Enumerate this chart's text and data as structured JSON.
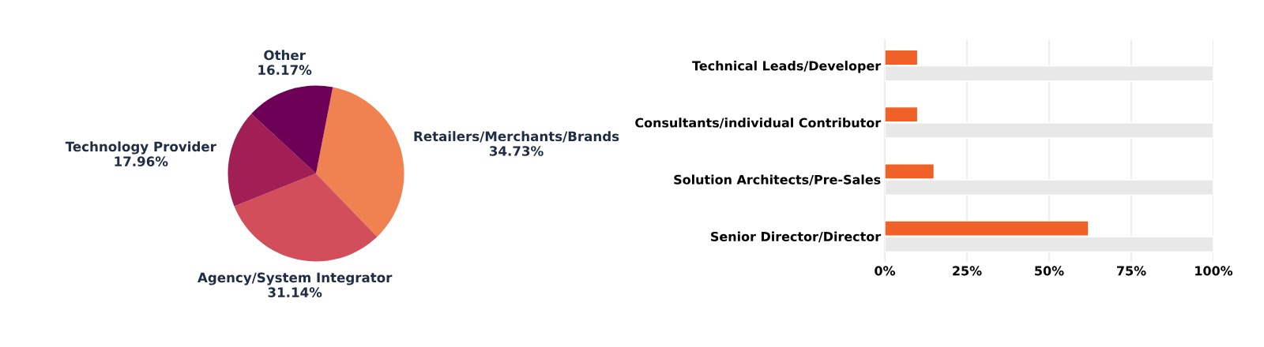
{
  "chart_data": [
    {
      "type": "pie",
      "categories": [
        "Retailers/Merchants/Brands",
        "Agency/System Integrator",
        "Technology Provider",
        "Other"
      ],
      "values": [
        34.73,
        31.14,
        17.96,
        16.17
      ],
      "value_labels": [
        "34.73%",
        "31.14%",
        "17.96%",
        "16.17%"
      ],
      "colors": [
        "#f08150",
        "#d14e5a",
        "#a21f56",
        "#6d0056"
      ]
    },
    {
      "type": "bar",
      "orientation": "horizontal",
      "categories": [
        "Technical Leads/Developer",
        "Consultants/individual Contributor",
        "Solution Architects/Pre-Sales",
        "Senior Director/Director"
      ],
      "series": [
        {
          "color": "#ef6126",
          "values": [
            10,
            10,
            15,
            62
          ]
        },
        {
          "color": "#e8e8e8",
          "values": [
            100,
            100,
            100,
            100
          ]
        }
      ],
      "xlim": [
        0,
        100
      ],
      "xticks": [
        {
          "value": 0,
          "label": "0%"
        },
        {
          "value": 25,
          "label": "25%"
        },
        {
          "value": 50,
          "label": "50%"
        },
        {
          "value": 75,
          "label": "75%"
        },
        {
          "value": 100,
          "label": "100%"
        }
      ],
      "grid": "x"
    }
  ]
}
